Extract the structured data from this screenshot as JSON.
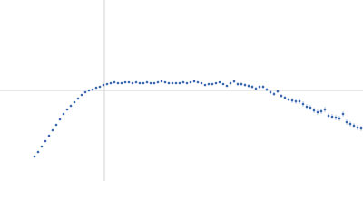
{
  "chart_data": {
    "type": "scatter",
    "x": [
      -77,
      -73,
      -69,
      -65,
      -61,
      -57,
      -53,
      -49,
      -45,
      -41,
      -37,
      -33,
      -29,
      -25,
      -21,
      -17,
      -13,
      -9,
      -5,
      -1,
      3,
      7,
      11,
      15,
      19,
      23,
      27,
      31,
      35,
      39,
      43,
      47,
      51,
      55,
      59,
      63,
      67,
      71,
      75,
      79,
      83,
      87,
      91,
      95,
      99,
      103,
      107,
      111,
      115,
      119,
      123,
      127,
      131,
      135,
      139,
      143,
      147,
      151,
      155,
      159,
      163,
      167,
      171,
      175,
      179,
      183,
      187,
      191,
      195,
      199,
      203,
      207,
      211,
      215,
      219,
      223,
      227,
      231,
      235,
      239,
      243,
      247,
      251,
      255,
      259,
      263,
      267,
      271,
      275,
      279,
      283
    ],
    "series": [
      {
        "color": "#3a67ad",
        "values": [
          -73,
          -68,
          -62,
          -56,
          -50,
          -44,
          -38,
          -32,
          -26,
          -21,
          -17,
          -13,
          -9,
          -5,
          -2,
          0,
          1,
          3,
          4,
          6,
          7,
          8,
          9,
          8,
          8,
          9,
          9,
          8,
          9,
          8,
          8,
          9,
          8,
          8,
          9,
          10,
          9,
          8,
          8,
          8,
          8,
          9,
          8,
          9,
          10,
          9,
          8,
          6,
          7,
          7,
          8,
          9,
          7,
          5,
          8,
          10,
          7,
          7,
          6,
          5,
          4,
          2,
          4,
          4,
          1,
          -2,
          -4,
          -1,
          -6,
          -8,
          -10,
          -11,
          -12,
          -12,
          -15,
          -18,
          -19,
          -22,
          -24,
          -23,
          -21,
          -28,
          -29,
          -30,
          -31,
          -26,
          -35,
          -37,
          -39,
          -41,
          -42
        ],
        "errors": [
          1,
          1,
          1,
          1,
          1,
          1,
          1,
          1,
          1,
          1,
          1,
          1,
          1,
          1,
          1,
          1,
          1,
          1,
          1,
          1,
          1,
          1,
          1,
          1,
          1,
          1,
          1,
          1,
          1,
          1,
          1,
          1,
          1,
          1,
          1,
          1,
          1,
          1,
          1,
          1,
          1,
          1,
          1,
          1,
          1,
          1,
          1,
          1,
          1,
          1,
          1,
          1,
          1,
          1,
          2,
          2,
          2,
          2,
          2,
          2,
          2,
          2,
          2,
          2,
          2,
          2,
          2,
          2,
          2,
          2,
          2,
          3,
          3,
          3,
          3,
          3,
          3,
          3,
          3,
          3,
          3,
          3,
          3,
          3,
          3,
          3,
          3,
          3,
          3,
          3,
          3
        ]
      }
    ],
    "xlim": [
      -115,
      285
    ],
    "ylim": [
      -100,
      100
    ]
  }
}
